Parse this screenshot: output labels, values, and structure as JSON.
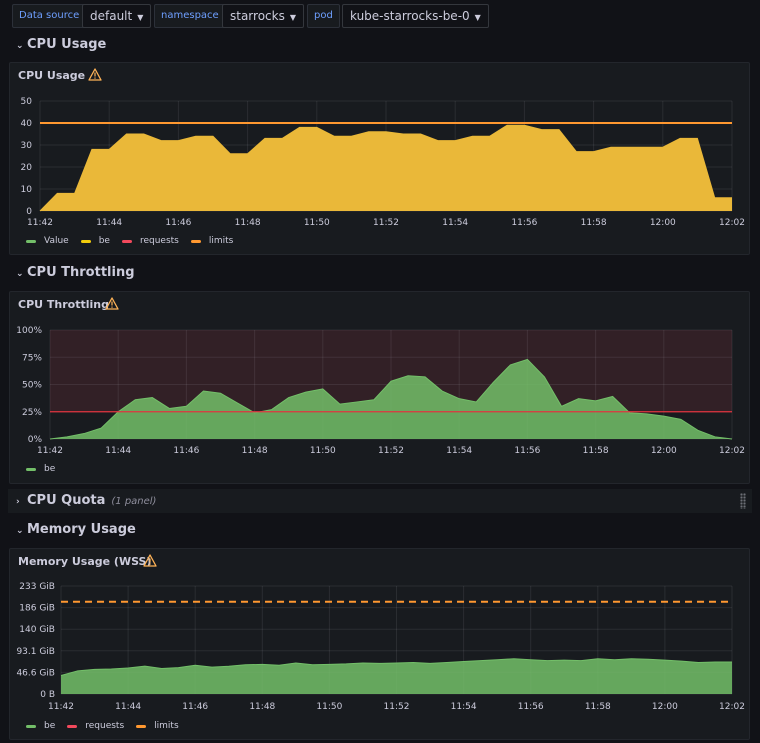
{
  "variables": [
    {
      "label": "Data source",
      "value": "default"
    },
    {
      "label": "namespace",
      "value": "starrocks"
    },
    {
      "label": "pod",
      "value": "kube-starrocks-be-0"
    }
  ],
  "rows": {
    "cpu_usage": "CPU Usage",
    "cpu_throttling": "CPU Throttling",
    "cpu_quota": "CPU Quota",
    "cpu_quota_count": "(1 panel)",
    "memory_usage": "Memory Usage"
  },
  "panels": {
    "cpu_usage_title": "CPU Usage",
    "cpu_throttling_title": "CPU Throttling",
    "memory_title": "Memory Usage (WSS)"
  },
  "legends": {
    "cpu_usage": [
      {
        "name": "Value",
        "color": "#73bf69"
      },
      {
        "name": "be",
        "color": "#f2cc0c"
      },
      {
        "name": "requests",
        "color": "#f2495c"
      },
      {
        "name": "limits",
        "color": "#ff9830"
      }
    ],
    "cpu_throttling": [
      {
        "name": "be",
        "color": "#73bf69"
      }
    ],
    "memory": [
      {
        "name": "be",
        "color": "#73bf69"
      },
      {
        "name": "requests",
        "color": "#f2495c"
      },
      {
        "name": "limits",
        "color": "#ff9830"
      }
    ]
  },
  "chart_data": [
    {
      "id": "cpu_usage",
      "type": "area",
      "x_ticks": [
        "11:42",
        "11:44",
        "11:46",
        "11:48",
        "11:50",
        "11:52",
        "11:54",
        "11:56",
        "11:58",
        "12:00",
        "12:02"
      ],
      "y_ticks": [
        "0",
        "10",
        "20",
        "30",
        "40",
        "50"
      ],
      "ylim": [
        0,
        50
      ],
      "x_minutes": [
        0,
        0.5,
        1,
        1.5,
        2,
        2.5,
        3,
        3.5,
        4,
        4.5,
        5,
        5.5,
        6,
        6.5,
        7,
        7.5,
        8,
        8.5,
        9,
        9.5,
        10,
        10.5,
        11,
        11.5,
        12,
        12.5,
        13,
        13.5,
        14,
        14.5,
        15,
        15.5,
        16,
        16.5,
        17,
        17.5,
        18,
        18.5,
        19,
        19.5,
        20
      ],
      "series": [
        {
          "name": "be",
          "color": "#eab839",
          "values": [
            0,
            8,
            8,
            28,
            28,
            35,
            35,
            32,
            32,
            34,
            34,
            26,
            26,
            33,
            33,
            38,
            38,
            34,
            34,
            36,
            36,
            35,
            35,
            32,
            32,
            34,
            34,
            39,
            39,
            37,
            37,
            27,
            27,
            29,
            29,
            29,
            29,
            33,
            33,
            6,
            6
          ]
        },
        {
          "name": "limits",
          "color": "#ff9830",
          "values": [
            40,
            40
          ]
        }
      ],
      "grid": true
    },
    {
      "id": "cpu_throttling",
      "type": "area",
      "x_ticks": [
        "11:42",
        "11:44",
        "11:46",
        "11:48",
        "11:50",
        "11:52",
        "11:54",
        "11:56",
        "11:58",
        "12:00",
        "12:02"
      ],
      "y_ticks": [
        "0%",
        "25%",
        "50%",
        "75%",
        "100%"
      ],
      "ylim": [
        0,
        100
      ],
      "threshold": 25,
      "x_minutes": [
        0,
        0.5,
        1,
        1.5,
        2,
        2.5,
        3,
        3.5,
        4,
        4.5,
        5,
        5.5,
        6,
        6.5,
        7,
        7.5,
        8,
        8.5,
        9,
        9.5,
        10,
        10.5,
        11,
        11.5,
        12,
        12.5,
        13,
        13.5,
        14,
        14.5,
        15,
        15.5,
        16,
        16.5,
        17,
        17.5,
        18,
        18.5,
        19,
        19.5,
        20
      ],
      "series": [
        {
          "name": "be",
          "color": "#73bf69",
          "values": [
            0,
            2,
            5,
            10,
            25,
            36,
            38,
            28,
            30,
            44,
            42,
            33,
            24,
            27,
            38,
            43,
            46,
            32,
            34,
            36,
            53,
            58,
            57,
            44,
            37,
            34,
            52,
            68,
            73,
            57,
            30,
            37,
            35,
            39,
            24,
            23,
            21,
            18,
            8,
            2,
            0
          ]
        }
      ],
      "grid": true
    },
    {
      "id": "memory",
      "type": "area",
      "x_ticks": [
        "11:42",
        "11:44",
        "11:46",
        "11:48",
        "11:50",
        "11:52",
        "11:54",
        "11:56",
        "11:58",
        "12:00",
        "12:02"
      ],
      "y_ticks": [
        "0 B",
        "46.6 GiB",
        "93.1 GiB",
        "140 GiB",
        "186 GiB",
        "233 GiB"
      ],
      "ylim": [
        0,
        233
      ],
      "x_minutes": [
        0,
        0.5,
        1,
        1.5,
        2,
        2.5,
        3,
        3.5,
        4,
        4.5,
        5,
        5.5,
        6,
        6.5,
        7,
        7.5,
        8,
        8.5,
        9,
        9.5,
        10,
        10.5,
        11,
        11.5,
        12,
        12.5,
        13,
        13.5,
        14,
        14.5,
        15,
        15.5,
        16,
        16.5,
        17,
        17.5,
        18,
        18.5,
        19,
        19.5,
        20
      ],
      "series": [
        {
          "name": "be",
          "color": "#73bf69",
          "values": [
            40,
            50,
            53,
            54,
            56,
            60,
            55,
            57,
            62,
            58,
            60,
            63,
            64,
            62,
            67,
            63,
            64,
            65,
            67,
            66,
            67,
            68,
            66,
            68,
            70,
            72,
            74,
            76,
            74,
            72,
            73,
            72,
            76,
            74,
            76,
            75,
            73,
            71,
            68,
            69,
            69
          ]
        },
        {
          "name": "limits",
          "color": "#ff9830",
          "values": [
            199,
            199
          ]
        }
      ],
      "grid": true
    }
  ]
}
